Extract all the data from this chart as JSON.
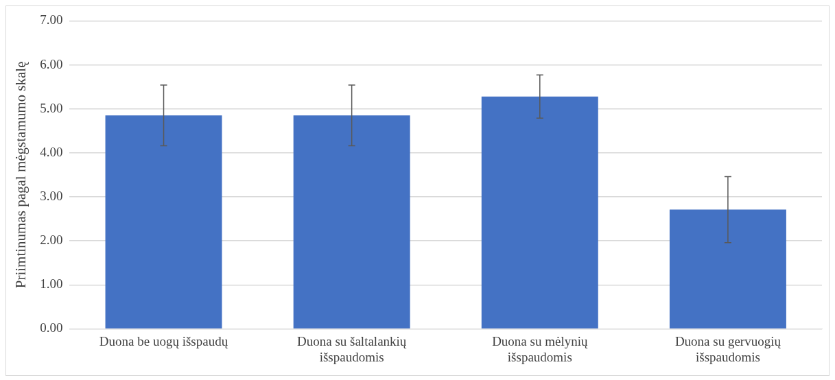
{
  "chart_data": {
    "type": "bar",
    "ylabel": "Priimtinumas pagal mėgstamumo skalę",
    "categories": [
      [
        "Duona be uogų išspaudų"
      ],
      [
        "Duona su šaltalankių",
        "išspaudomis"
      ],
      [
        "Duona su mėlynių",
        "išspaudomis"
      ],
      [
        "Duona su gervuogių",
        "išspaudomis"
      ]
    ],
    "values": [
      4.85,
      4.85,
      5.28,
      2.71
    ],
    "errors": [
      0.69,
      0.69,
      0.49,
      0.75
    ],
    "color": "#4472c4",
    "ylim": [
      0,
      7
    ],
    "yticks": [
      {
        "value": 0,
        "label": "0.00"
      },
      {
        "value": 1,
        "label": "1.00"
      },
      {
        "value": 2,
        "label": "2.00"
      },
      {
        "value": 3,
        "label": "3.00"
      },
      {
        "value": 4,
        "label": "4.00"
      },
      {
        "value": 5,
        "label": "5.00"
      },
      {
        "value": 6,
        "label": "6.00"
      },
      {
        "value": 7,
        "label": "7.00"
      }
    ],
    "grid": "y",
    "legend": false
  }
}
